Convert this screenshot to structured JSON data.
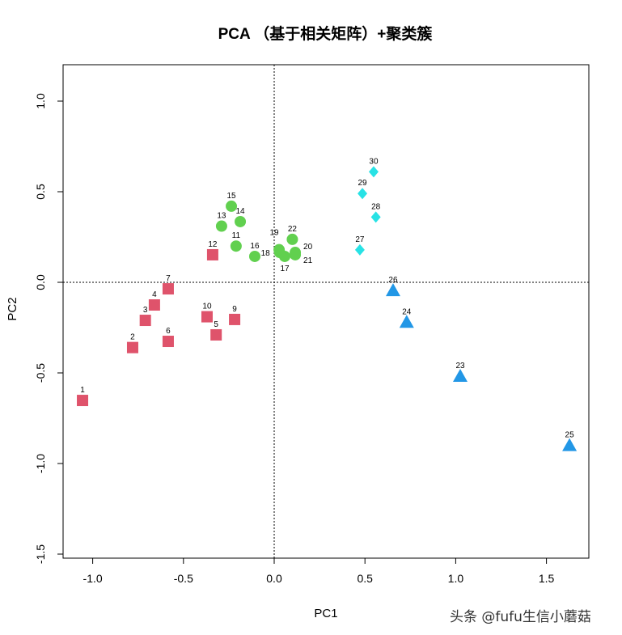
{
  "chart_data": {
    "type": "scatter",
    "title": "PCA （基于相关矩阵）+聚类簇",
    "xlabel": "PC1",
    "ylabel": "PC2",
    "xlim": [
      -1.2,
      1.75
    ],
    "ylim": [
      -1.52,
      1.2
    ],
    "xticks": [
      -1.0,
      -0.5,
      0.0,
      0.5,
      1.0,
      1.5
    ],
    "yticks": [
      -1.5,
      -1.0,
      -0.5,
      0.0,
      0.5,
      1.0
    ],
    "xtick_labels": [
      "-1.0",
      "-0.5",
      "0.0",
      "0.5",
      "1.0",
      "1.5"
    ],
    "ytick_labels": [
      "-1.5",
      "-1.0",
      "-0.5",
      "0.0",
      "0.5",
      "1.0"
    ],
    "reference_lines": {
      "x": 0,
      "y": 0,
      "style": "dotted"
    },
    "grid": false,
    "clusters": [
      {
        "cluster": 1,
        "shape": "square",
        "color": "#DF536B",
        "points": [
          {
            "label": "1",
            "x": -1.056,
            "y": -0.652
          },
          {
            "label": "2",
            "x": -0.78,
            "y": -0.36
          },
          {
            "label": "3",
            "x": -0.71,
            "y": -0.21
          },
          {
            "label": "4",
            "x": -0.66,
            "y": -0.125
          },
          {
            "label": "5",
            "x": -0.32,
            "y": -0.29
          },
          {
            "label": "6",
            "x": -0.584,
            "y": -0.326
          },
          {
            "label": "7",
            "x": -0.584,
            "y": -0.036
          },
          {
            "label": "9",
            "x": -0.218,
            "y": -0.205
          },
          {
            "label": "10",
            "x": -0.37,
            "y": -0.19
          },
          {
            "label": "12",
            "x": -0.339,
            "y": 0.152
          }
        ]
      },
      {
        "cluster": 2,
        "shape": "circle",
        "color": "#61D04F",
        "points": [
          {
            "label": "11",
            "x": -0.21,
            "y": 0.2
          },
          {
            "label": "13",
            "x": -0.29,
            "y": 0.31
          },
          {
            "label": "14",
            "x": -0.187,
            "y": 0.335
          },
          {
            "label": "15",
            "x": -0.236,
            "y": 0.42
          },
          {
            "label": "16",
            "x": -0.107,
            "y": 0.143
          },
          {
            "label": "17",
            "x": 0.058,
            "y": 0.143
          },
          {
            "label": "18",
            "x": 0.03,
            "y": 0.165
          },
          {
            "label": "19",
            "x": 0.027,
            "y": 0.18
          },
          {
            "label": "20",
            "x": 0.116,
            "y": 0.165
          },
          {
            "label": "21",
            "x": 0.116,
            "y": 0.152
          },
          {
            "label": "22",
            "x": 0.1,
            "y": 0.237
          }
        ]
      },
      {
        "cluster": 3,
        "shape": "triangle",
        "color": "#2297E6",
        "points": [
          {
            "label": "23",
            "x": 1.025,
            "y": -0.518
          },
          {
            "label": "24",
            "x": 0.73,
            "y": -0.22
          },
          {
            "label": "25",
            "x": 1.627,
            "y": -0.9
          },
          {
            "label": "26",
            "x": 0.655,
            "y": -0.045
          }
        ]
      },
      {
        "cluster": 4,
        "shape": "diamond",
        "color": "#28E2E5",
        "points": [
          {
            "label": "27",
            "x": 0.472,
            "y": 0.179
          },
          {
            "label": "28",
            "x": 0.56,
            "y": 0.36
          },
          {
            "label": "29",
            "x": 0.486,
            "y": 0.49
          },
          {
            "label": "30",
            "x": 0.548,
            "y": 0.61
          }
        ]
      }
    ]
  },
  "watermark": "头条 @fufu生信小蘑菇"
}
